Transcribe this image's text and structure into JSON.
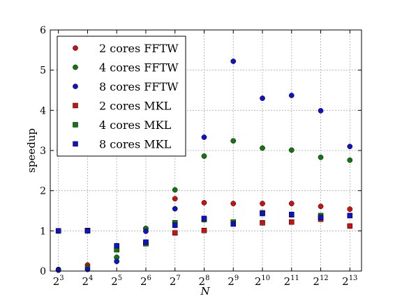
{
  "chart_data": {
    "type": "scatter",
    "xlabel": "N",
    "ylabel": "speedup",
    "x_exponents": [
      3,
      4,
      5,
      6,
      7,
      8,
      9,
      10,
      11,
      12,
      13
    ],
    "x_tick_base": "2",
    "xlim": [
      2.72,
      13.4
    ],
    "ylim": [
      0,
      6
    ],
    "yticks": [
      "0",
      "1",
      "2",
      "3",
      "4",
      "5",
      "6"
    ],
    "grid": true,
    "legend_position": "top-left",
    "series": [
      {
        "name": "2 cores FFTW",
        "marker": "circle",
        "color": "#cc1111",
        "x": [
          3,
          4,
          5,
          6,
          7,
          8,
          9,
          10,
          11,
          12,
          13
        ],
        "y": [
          0.04,
          0.15,
          0.34,
          1.06,
          1.8,
          1.7,
          1.68,
          1.68,
          1.68,
          1.61,
          1.54
        ]
      },
      {
        "name": "4 cores FFTW",
        "marker": "circle",
        "color": "#117711",
        "x": [
          3,
          4,
          5,
          6,
          7,
          8,
          9,
          10,
          11,
          12,
          13
        ],
        "y": [
          0.03,
          0.09,
          0.34,
          1.06,
          2.02,
          2.86,
          3.24,
          3.06,
          3.01,
          2.83,
          2.76
        ]
      },
      {
        "name": "8 cores FFTW",
        "marker": "circle",
        "color": "#1111cc",
        "x": [
          3,
          4,
          5,
          6,
          7,
          8,
          9,
          10,
          11,
          12,
          13
        ],
        "y": [
          0.02,
          0.04,
          0.24,
          0.99,
          1.55,
          3.33,
          5.22,
          4.3,
          4.37,
          3.99,
          3.1
        ]
      },
      {
        "name": "2 cores MKL",
        "marker": "square",
        "color": "#cc1111",
        "x": [
          3,
          4,
          5,
          6,
          7,
          8,
          9,
          10,
          11,
          12,
          13
        ],
        "y": [
          1.0,
          1.01,
          0.6,
          0.7,
          0.95,
          1.01,
          1.2,
          1.2,
          1.22,
          1.29,
          1.12
        ]
      },
      {
        "name": "4 cores MKL",
        "marker": "square",
        "color": "#117711",
        "x": [
          3,
          4,
          5,
          6,
          7,
          8,
          9,
          10,
          11,
          12,
          13
        ],
        "y": [
          1.0,
          1.0,
          0.53,
          0.68,
          1.2,
          1.28,
          1.22,
          1.45,
          1.4,
          1.38,
          1.38
        ]
      },
      {
        "name": "8 cores MKL",
        "marker": "square",
        "color": "#1111cc",
        "x": [
          3,
          4,
          5,
          6,
          7,
          8,
          9,
          10,
          11,
          12,
          13
        ],
        "y": [
          1.0,
          1.0,
          0.63,
          0.72,
          1.14,
          1.31,
          1.17,
          1.43,
          1.41,
          1.33,
          1.38
        ]
      }
    ]
  }
}
